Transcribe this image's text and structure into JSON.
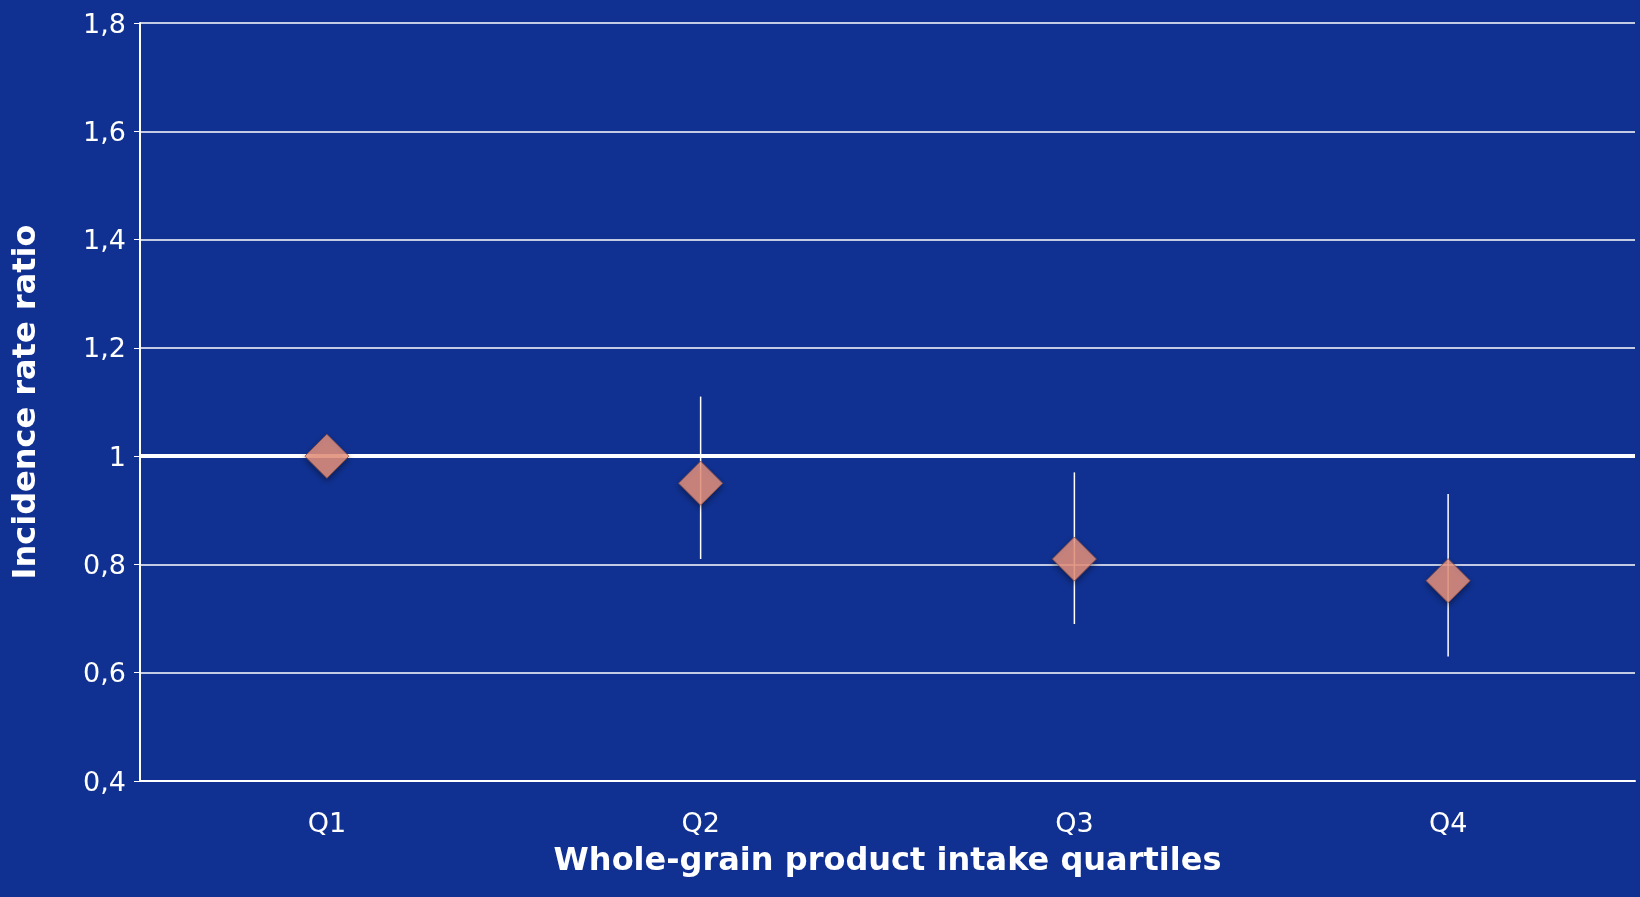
{
  "chart_data": {
    "type": "scatter",
    "xlabel": "Whole-grain product intake quartiles",
    "ylabel": "Incidence rate ratio",
    "categories": [
      "Q1",
      "Q2",
      "Q3",
      "Q4"
    ],
    "series": [
      {
        "color": "#e8927c",
        "values": [
          1.0,
          0.95,
          0.81,
          0.77
        ],
        "errors": [
          null,
          [
            0.81,
            1.11
          ],
          [
            0.69,
            0.97
          ],
          [
            0.63,
            0.93
          ]
        ]
      }
    ],
    "ylim": [
      0.4,
      1.8
    ],
    "yticks": [
      {
        "value": 0.4,
        "label": "0,4"
      },
      {
        "value": 0.6,
        "label": "0,6"
      },
      {
        "value": 0.8,
        "label": "0,8"
      },
      1,
      {
        "value": 1.2,
        "label": "1,2"
      },
      {
        "value": 1.4,
        "label": "1,4"
      },
      {
        "value": 1.6,
        "label": "1,6"
      },
      {
        "value": 1.8,
        "label": "1,8"
      }
    ],
    "ref_lines": [
      {
        "axis": "y",
        "value": 1,
        "color": "#ffffff"
      }
    ],
    "grid": "y",
    "marker": "diamond"
  }
}
